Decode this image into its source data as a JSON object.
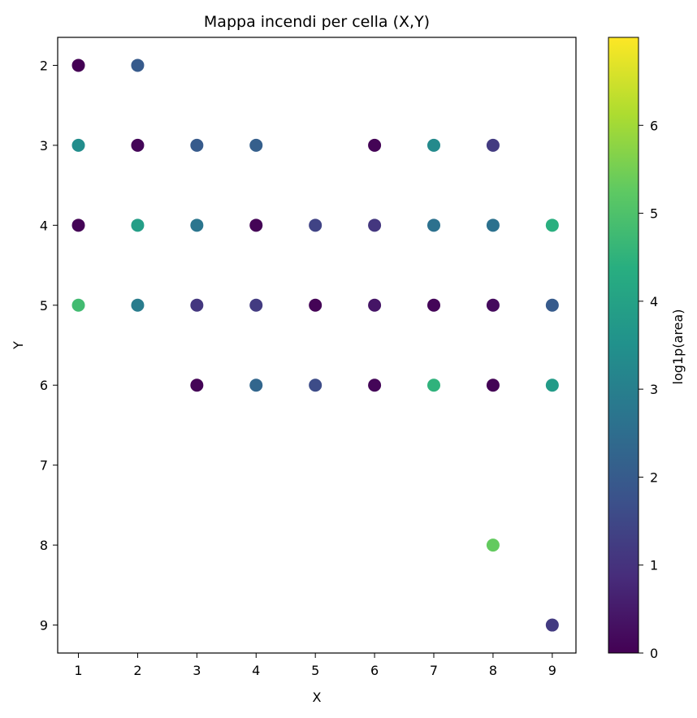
{
  "chart_data": {
    "type": "scatter",
    "title": "Mappa incendi per cella (X,Y)",
    "xlabel": "X",
    "ylabel": "Y",
    "xlim": [
      0.65,
      9.4
    ],
    "ylim": [
      9.35,
      1.65
    ],
    "y_inverted": true,
    "x_ticks": [
      1,
      2,
      3,
      4,
      5,
      6,
      7,
      8,
      9
    ],
    "y_ticks": [
      2,
      3,
      4,
      5,
      6,
      7,
      8,
      9
    ],
    "grid": false,
    "colormap": "viridis",
    "colorbar": {
      "label": "log1p(area)",
      "range": [
        0,
        7
      ],
      "ticks": [
        0,
        1,
        2,
        3,
        4,
        5,
        6
      ]
    },
    "points": [
      {
        "x": 1,
        "y": 2,
        "c": 0.0
      },
      {
        "x": 2,
        "y": 2,
        "c": 2.0
      },
      {
        "x": 1,
        "y": 3,
        "c": 3.4
      },
      {
        "x": 2,
        "y": 3,
        "c": 0.1
      },
      {
        "x": 3,
        "y": 3,
        "c": 2.0
      },
      {
        "x": 4,
        "y": 3,
        "c": 2.1
      },
      {
        "x": 6,
        "y": 3,
        "c": 0.05
      },
      {
        "x": 7,
        "y": 3,
        "c": 3.3
      },
      {
        "x": 8,
        "y": 3,
        "c": 1.2
      },
      {
        "x": 1,
        "y": 4,
        "c": 0.05
      },
      {
        "x": 2,
        "y": 4,
        "c": 3.9
      },
      {
        "x": 3,
        "y": 4,
        "c": 2.7
      },
      {
        "x": 4,
        "y": 4,
        "c": 0.05
      },
      {
        "x": 5,
        "y": 4,
        "c": 1.4
      },
      {
        "x": 6,
        "y": 4,
        "c": 1.1
      },
      {
        "x": 7,
        "y": 4,
        "c": 2.6
      },
      {
        "x": 8,
        "y": 4,
        "c": 2.6
      },
      {
        "x": 9,
        "y": 4,
        "c": 4.4
      },
      {
        "x": 1,
        "y": 5,
        "c": 4.8
      },
      {
        "x": 2,
        "y": 5,
        "c": 2.9
      },
      {
        "x": 3,
        "y": 5,
        "c": 1.1
      },
      {
        "x": 4,
        "y": 5,
        "c": 1.2
      },
      {
        "x": 5,
        "y": 5,
        "c": 0.05
      },
      {
        "x": 6,
        "y": 5,
        "c": 0.4
      },
      {
        "x": 7,
        "y": 5,
        "c": 0.1
      },
      {
        "x": 8,
        "y": 5,
        "c": 0.2
      },
      {
        "x": 9,
        "y": 5,
        "c": 2.0
      },
      {
        "x": 3,
        "y": 6,
        "c": 0.05
      },
      {
        "x": 4,
        "y": 6,
        "c": 2.3
      },
      {
        "x": 5,
        "y": 6,
        "c": 1.6
      },
      {
        "x": 6,
        "y": 6,
        "c": 0.1
      },
      {
        "x": 7,
        "y": 6,
        "c": 4.5
      },
      {
        "x": 8,
        "y": 6,
        "c": 0.05
      },
      {
        "x": 9,
        "y": 6,
        "c": 3.8
      },
      {
        "x": 8,
        "y": 8,
        "c": 5.3
      },
      {
        "x": 9,
        "y": 9,
        "c": 1.2
      }
    ]
  }
}
